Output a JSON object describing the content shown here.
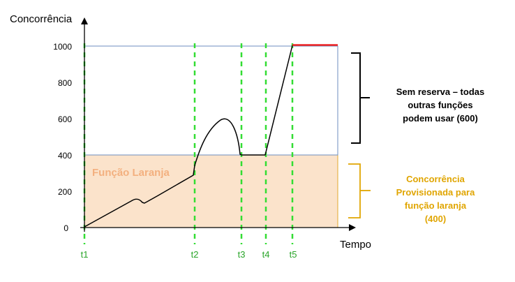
{
  "labels": {
    "y_axis_title": "Concorrência",
    "x_axis_title": "Tempo",
    "region_label": "Função Laranja",
    "unreserved_note": [
      "Sem reserva – todas",
      "outras funções",
      "podem usar (600)"
    ],
    "provisioned_note": [
      "Concorrência",
      "Provisionada para",
      "função laranja",
      "(400)"
    ]
  },
  "colors": {
    "orange_fill": "#fbe3cb",
    "orange_border": "#e0a92d",
    "orange_text": "#f3b07f",
    "blue_border": "#6c8ebf",
    "green_dash": "#33dd33",
    "red_line": "#ee2222",
    "curve": "#000000",
    "axis": "#000000",
    "note_orange": "#e0a500"
  },
  "y_ticks": [
    {
      "value": 0,
      "label": "0"
    },
    {
      "value": 200,
      "label": "200"
    },
    {
      "value": 400,
      "label": "400"
    },
    {
      "value": 600,
      "label": "600"
    },
    {
      "value": 800,
      "label": "800"
    },
    {
      "value": 1000,
      "label": "1000"
    }
  ],
  "time_markers": [
    {
      "label": "t1"
    },
    {
      "label": "t2"
    },
    {
      "label": "t3"
    },
    {
      "label": "t4"
    },
    {
      "label": "t5"
    }
  ]
}
